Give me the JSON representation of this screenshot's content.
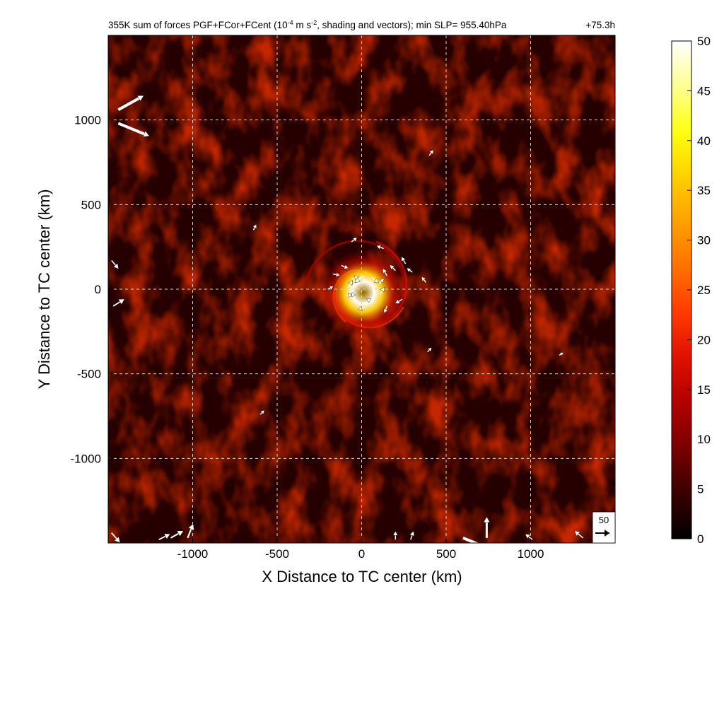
{
  "chart_data": {
    "type": "heatmap",
    "title": {
      "prefix": "355K sum of forces PGF+FCor+FCent (10",
      "exp1": "-4",
      "mid": " m s",
      "exp2": "-2",
      "suffix": ", shading and vectors); min SLP= 955.40hPa"
    },
    "time_label": "+75.3h",
    "xlabel": "X Distance to TC center (km)",
    "ylabel": "Y Distance to TC center (km)",
    "xlim": [
      -1500,
      1500
    ],
    "ylim": [
      -1500,
      1500
    ],
    "x_ticks": [
      -1000,
      -500,
      0,
      500,
      1000
    ],
    "y_ticks": [
      -1000,
      -500,
      0,
      500,
      1000
    ],
    "x_tick_labels": [
      "-1000",
      "-500",
      "0",
      "500",
      "1000"
    ],
    "y_tick_labels": [
      "-1000",
      "-500",
      "0",
      "500",
      "1000"
    ],
    "grid": true,
    "colorbar": {
      "range": [
        0,
        50
      ],
      "ticks": [
        0,
        5,
        10,
        15,
        20,
        25,
        30,
        35,
        40,
        45,
        50
      ],
      "tick_labels": [
        "0",
        "5",
        "10",
        "15",
        "20",
        "25",
        "30",
        "35",
        "40",
        "45",
        "50"
      ],
      "colormap": "hot",
      "stops": [
        "#000000",
        "#3a0000",
        "#7a0000",
        "#b00000",
        "#e01000",
        "#ff3a00",
        "#ff7000",
        "#ffa000",
        "#ffd000",
        "#ffff10",
        "#ffff90",
        "#ffffff"
      ]
    },
    "field_description": "eyewall maximum near TC center, spiral bands within ~300 km, background values ~3-8",
    "core_max": 50,
    "background_level": 5,
    "reference_vector": {
      "label": "50",
      "value": 50
    },
    "vectors": [
      {
        "x": 10,
        "y": 80,
        "u": -30,
        "v": -25
      },
      {
        "x": 60,
        "y": 70,
        "u": 25,
        "v": -20
      },
      {
        "x": 100,
        "y": 30,
        "u": 20,
        "v": 20
      },
      {
        "x": 110,
        "y": -30,
        "u": 15,
        "v": 25
      },
      {
        "x": 70,
        "y": -80,
        "u": -25,
        "v": 15
      },
      {
        "x": 20,
        "y": -110,
        "u": -25,
        "v": -5
      },
      {
        "x": -40,
        "y": -60,
        "u": -10,
        "v": 25
      },
      {
        "x": -80,
        "y": 10,
        "u": 15,
        "v": 25
      },
      {
        "x": -60,
        "y": 60,
        "u": 25,
        "v": 10
      },
      {
        "x": 150,
        "y": 80,
        "u": -15,
        "v": 25
      },
      {
        "x": 200,
        "y": 110,
        "u": -20,
        "v": 20
      },
      {
        "x": 260,
        "y": 150,
        "u": -15,
        "v": 25
      },
      {
        "x": 300,
        "y": 100,
        "u": -20,
        "v": 15
      },
      {
        "x": -120,
        "y": 140,
        "u": 25,
        "v": -10
      },
      {
        "x": -170,
        "y": 90,
        "u": 25,
        "v": -5
      },
      {
        "x": -200,
        "y": 0,
        "u": 20,
        "v": 10
      },
      {
        "x": 150,
        "y": -100,
        "u": -10,
        "v": -25
      },
      {
        "x": 240,
        "y": -60,
        "u": -25,
        "v": -15
      },
      {
        "x": -90,
        "y": -40,
        "u": 20,
        "v": 5
      },
      {
        "x": 130,
        "y": 240,
        "u": -25,
        "v": 10
      },
      {
        "x": -60,
        "y": 280,
        "u": 20,
        "v": 15
      },
      {
        "x": 380,
        "y": 40,
        "u": -15,
        "v": 20
      },
      {
        "x": -1440,
        "y": 1060,
        "u": 90,
        "v": 50
      },
      {
        "x": -1440,
        "y": 980,
        "u": 110,
        "v": -45
      },
      {
        "x": -1480,
        "y": 170,
        "u": 25,
        "v": -30
      },
      {
        "x": -1470,
        "y": -100,
        "u": 40,
        "v": 25
      },
      {
        "x": -640,
        "y": 350,
        "u": 10,
        "v": 20
      },
      {
        "x": -600,
        "y": -740,
        "u": 15,
        "v": 15
      },
      {
        "x": 400,
        "y": 790,
        "u": 15,
        "v": 20
      },
      {
        "x": 390,
        "y": -370,
        "u": 15,
        "v": 15
      },
      {
        "x": 1170,
        "y": -390,
        "u": 15,
        "v": 10
      },
      {
        "x": 600,
        "y": -1470,
        "u": 160,
        "v": -65
      },
      {
        "x": 740,
        "y": -1470,
        "u": 0,
        "v": 75
      },
      {
        "x": -1030,
        "y": -1470,
        "u": 20,
        "v": 50
      },
      {
        "x": -1130,
        "y": -1470,
        "u": 45,
        "v": 25
      },
      {
        "x": -1200,
        "y": -1480,
        "u": 40,
        "v": 20
      },
      {
        "x": -1480,
        "y": -1440,
        "u": 30,
        "v": -35
      },
      {
        "x": 1310,
        "y": -1470,
        "u": -30,
        "v": 25
      },
      {
        "x": 1010,
        "y": -1480,
        "u": -25,
        "v": 20
      },
      {
        "x": 200,
        "y": -1480,
        "u": 0,
        "v": 30
      },
      {
        "x": 290,
        "y": -1480,
        "u": 10,
        "v": 30
      }
    ]
  }
}
